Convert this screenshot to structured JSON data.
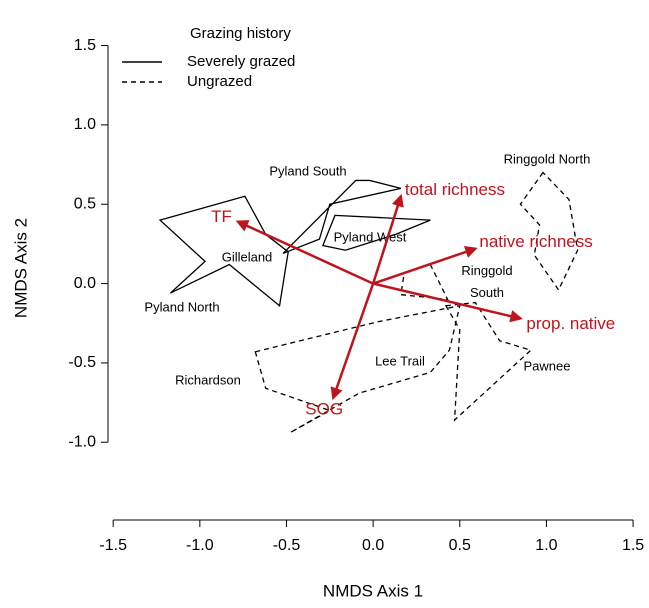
{
  "chart_data": {
    "type": "ordination",
    "xlabel": "NMDS Axis 1",
    "ylabel": "NMDS Axis 2",
    "xlim": [
      -1.53,
      1.54
    ],
    "ylim": [
      -1.49,
      1.68
    ],
    "xticks": [
      -1.5,
      {
        "value": -1.0,
        "label": "-1.0"
      },
      -0.5,
      {
        "value": 0.0,
        "label": "0.0"
      },
      0.5,
      {
        "value": 1.0,
        "label": "1.0"
      },
      1.5
    ],
    "yticks": [
      {
        "value": -1.0,
        "label": "-1.0"
      },
      -0.5,
      {
        "value": 0.0,
        "label": "0.0"
      },
      0.5,
      {
        "value": 1.0,
        "label": "1.0"
      },
      1.5
    ],
    "legend_title": "Grazing history",
    "groups": [
      {
        "name": "Severely grazed",
        "color": "#000000",
        "linestyle": "solid",
        "hulls": [
          {
            "x": [
              -1.23,
              -0.74,
              -0.62,
              -0.49,
              -0.54,
              -0.83,
              -1.17,
              -0.97
            ],
            "y": [
              0.4,
              0.55,
              0.31,
              0.2,
              -0.14,
              0.12,
              -0.06,
              0.14
            ]
          },
          {
            "x": [
              -0.52,
              -0.1,
              -0.02,
              0.16,
              -0.25,
              -0.31
            ],
            "y": [
              0.19,
              0.65,
              0.65,
              0.6,
              0.5,
              0.28
            ]
          },
          {
            "x": [
              -0.22,
              0.33,
              0.13,
              -0.16,
              -0.29
            ],
            "y": [
              0.43,
              0.4,
              0.31,
              0.21,
              0.24
            ]
          }
        ]
      },
      {
        "name": "Ungrazed",
        "color": "#000000",
        "linestyle": "dashed",
        "hulls": [
          {
            "x": [
              0.98,
              0.85,
              0.96,
              0.93,
              1.07,
              1.18,
              1.13
            ],
            "y": [
              0.7,
              0.5,
              0.37,
              0.18,
              -0.04,
              0.21,
              0.53
            ]
          },
          {
            "x": [
              -0.68,
              -0.42,
              0.03,
              0.5,
              0.44,
              0.33,
              -0.08,
              -0.48,
              -0.25,
              -0.62
            ],
            "y": [
              -0.43,
              -0.36,
              -0.24,
              -0.14,
              -0.42,
              -0.56,
              -0.69,
              -0.94,
              -0.8,
              -0.66
            ]
          },
          {
            "x": [
              0.42,
              0.59,
              0.73,
              0.91,
              0.47,
              0.5
            ],
            "y": [
              -0.14,
              -0.12,
              -0.36,
              -0.42,
              -0.86,
              -0.29
            ]
          },
          {
            "x": [
              0.18,
              0.33,
              0.43,
              0.16
            ],
            "y": [
              0.07,
              0.12,
              -0.1,
              -0.07
            ]
          }
        ]
      }
    ],
    "sites": [
      "Pyland South",
      "Ringgold North",
      "Pyland West",
      "Gilleland",
      "Pyland North",
      "Ringgold South",
      "Lee Trail",
      "Richardson",
      "Pawnee"
    ],
    "vector_color": "#c0141c",
    "vectors": [
      {
        "name": "TF",
        "x": -0.78,
        "y": 0.39
      },
      {
        "name": "total richness",
        "x": 0.16,
        "y": 0.55
      },
      {
        "name": "native richness",
        "x": 0.59,
        "y": 0.22
      },
      {
        "name": "prop. native",
        "x": 0.85,
        "y": -0.22
      },
      {
        "name": "SOG",
        "x": -0.23,
        "y": -0.72
      }
    ]
  }
}
